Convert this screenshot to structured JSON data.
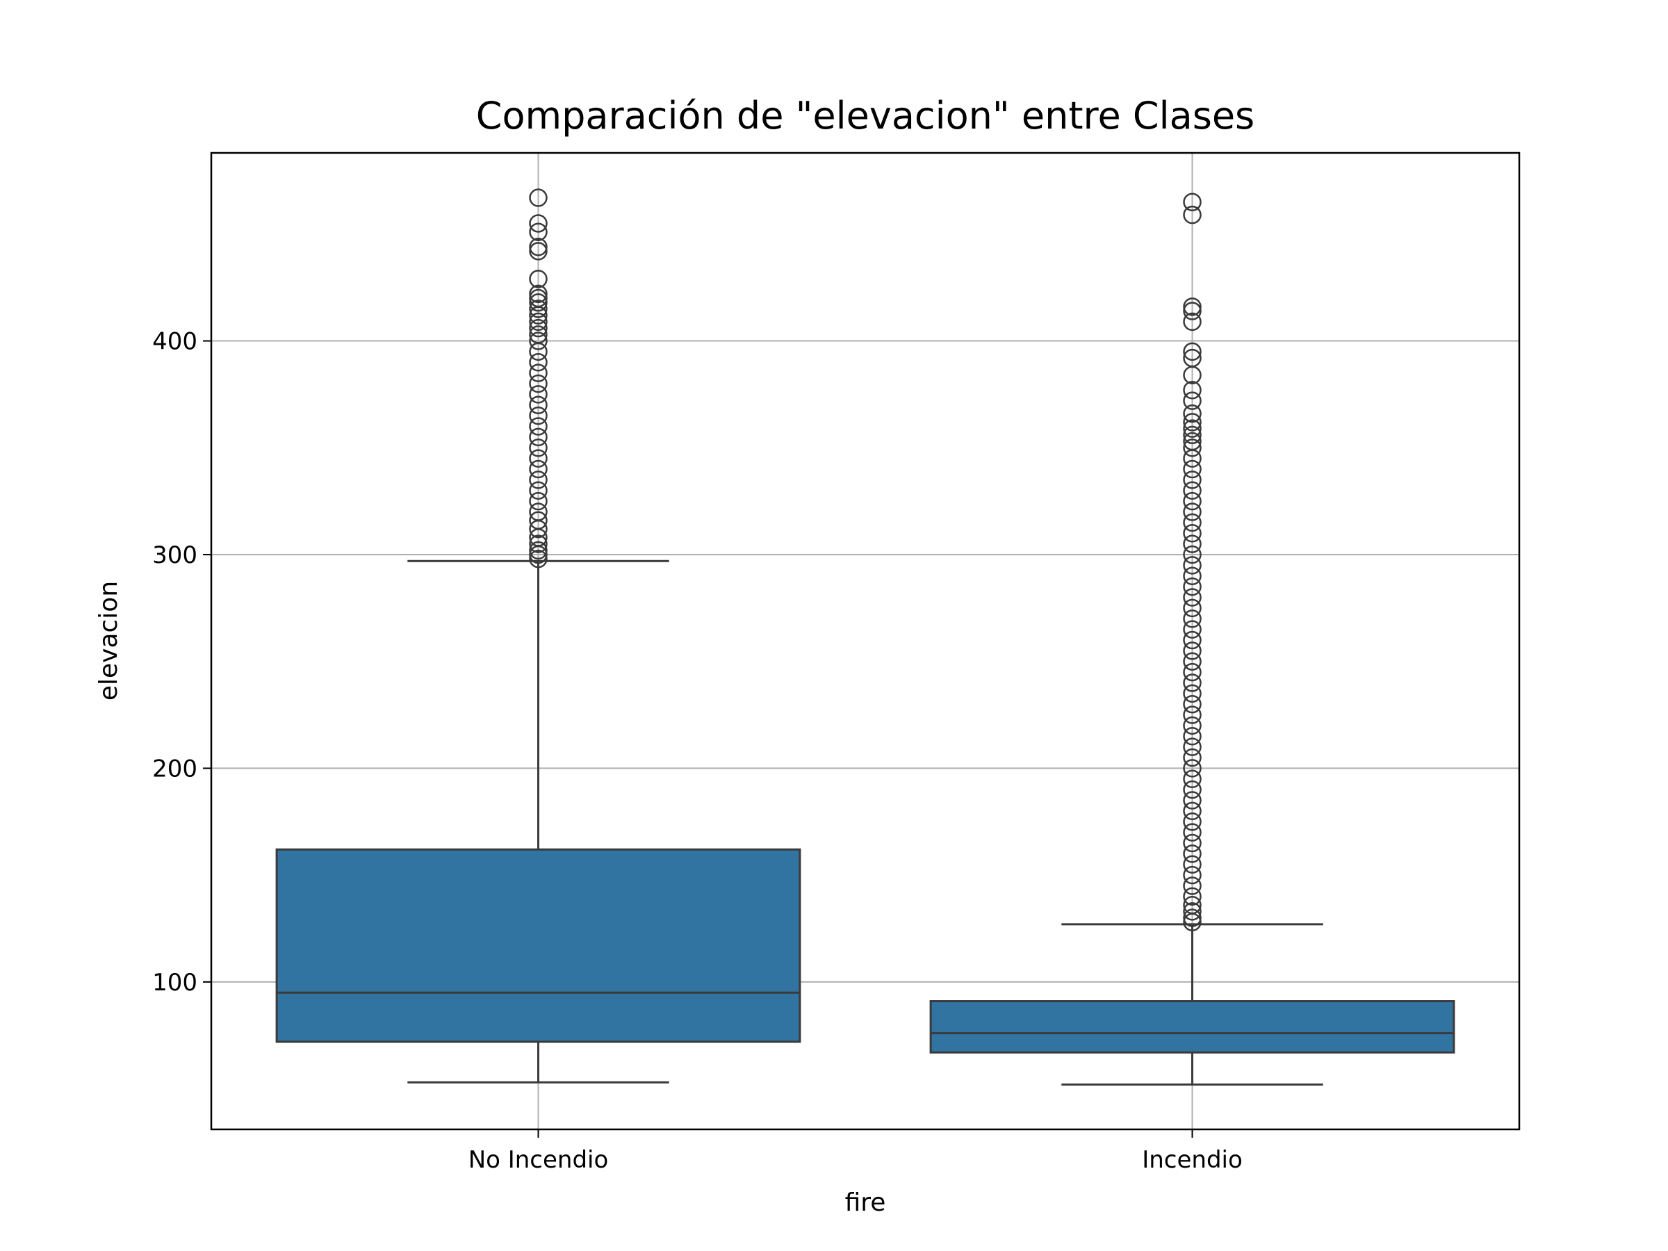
{
  "chart_data": {
    "type": "box",
    "title": "Comparación de \"elevacion\" entre Clases",
    "xlabel": "fire",
    "ylabel": "elevacion",
    "ylim": [
      31,
      488
    ],
    "yticks": [
      100,
      200,
      300,
      400
    ],
    "grid": true,
    "colors": {
      "box": "#3274a1",
      "line": "#3a3a3a",
      "grid": "#b0b0b0"
    },
    "categories": [
      "No Incendio",
      "Incendio"
    ],
    "boxes": [
      {
        "category": "No Incendio",
        "whisker_low": 53,
        "q1": 72,
        "median": 95,
        "q3": 162,
        "whisker_high": 297,
        "outliers": [
          298,
          300,
          302,
          305,
          308,
          312,
          316,
          320,
          325,
          330,
          335,
          340,
          345,
          350,
          355,
          360,
          365,
          370,
          375,
          380,
          385,
          390,
          395,
          400,
          403,
          406,
          409,
          412,
          415,
          418,
          420,
          422,
          429,
          442,
          444,
          451,
          455,
          467
        ]
      },
      {
        "category": "Incendio",
        "whisker_low": 52,
        "q1": 67,
        "median": 76,
        "q3": 91,
        "whisker_high": 127,
        "outliers": [
          128,
          130,
          133,
          136,
          140,
          145,
          150,
          155,
          160,
          165,
          170,
          175,
          180,
          185,
          190,
          195,
          200,
          205,
          210,
          215,
          220,
          225,
          230,
          235,
          240,
          245,
          250,
          255,
          260,
          265,
          270,
          275,
          280,
          285,
          290,
          295,
          300,
          305,
          310,
          315,
          320,
          325,
          330,
          335,
          340,
          345,
          350,
          353,
          356,
          359,
          362,
          366,
          372,
          377,
          384,
          392,
          395,
          409,
          414,
          416,
          459,
          465
        ]
      }
    ]
  }
}
